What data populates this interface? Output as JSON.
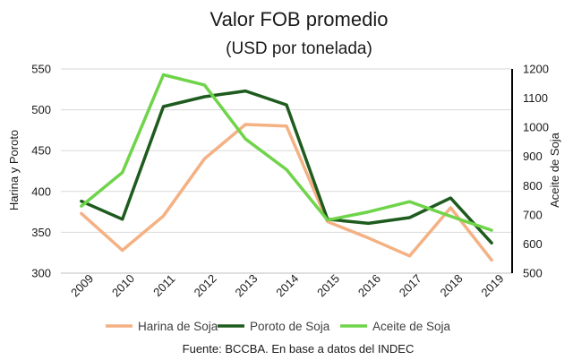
{
  "chart_data": {
    "type": "line",
    "title": "Valor FOB promedio",
    "subtitle": "(USD por tonelada)",
    "x": [
      "2009",
      "2010",
      "2011",
      "2012",
      "2013",
      "2014",
      "2015",
      "2016",
      "2017",
      "2018",
      "2019"
    ],
    "ylabel_left": "Harina y Poroto",
    "ylabel_right": "Aceite de Soja",
    "ylim_left": [
      300,
      550
    ],
    "yticks_left": [
      300,
      350,
      400,
      450,
      500,
      550
    ],
    "ylim_right": [
      500,
      1200
    ],
    "yticks_right": [
      500,
      600,
      700,
      800,
      900,
      1000,
      1100,
      1200
    ],
    "grid": true,
    "legend_position": "bottom",
    "series": [
      {
        "name": "Harina de Soja",
        "axis": "left",
        "color": "#f4b183",
        "values": [
          373,
          328,
          370,
          440,
          482,
          480,
          363,
          343,
          321,
          380,
          316
        ]
      },
      {
        "name": "Poroto de Soja",
        "axis": "left",
        "color": "#1e5b1e",
        "values": [
          388,
          366,
          504,
          516,
          523,
          506,
          366,
          361,
          368,
          392,
          337
        ]
      },
      {
        "name": "Aceite de Soja",
        "axis": "right",
        "color": "#6fd44a",
        "values": [
          730,
          845,
          1180,
          1145,
          960,
          855,
          682,
          710,
          745,
          695,
          647
        ]
      }
    ],
    "source": "Fuente: BCCBA. En base a datos del INDEC"
  }
}
